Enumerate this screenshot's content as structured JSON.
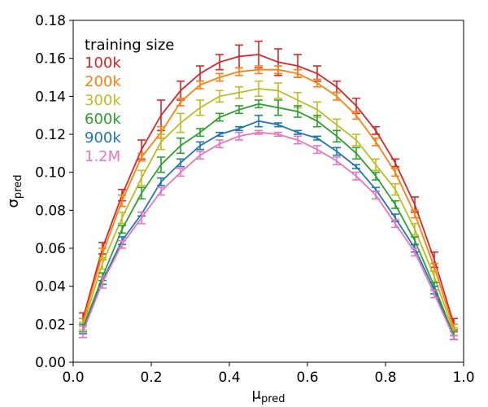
{
  "chart_data": {
    "type": "line",
    "title": "",
    "xlabel": "μ",
    "xlabel_sub": "pred",
    "ylabel": "σ",
    "ylabel_sub": "pred",
    "xlim": [
      0.0,
      1.0
    ],
    "ylim": [
      0.0,
      0.18
    ],
    "x_ticks": [
      "0.0",
      "0.2",
      "0.4",
      "0.6",
      "0.8",
      "1.0"
    ],
    "y_ticks": [
      "0.00",
      "0.02",
      "0.04",
      "0.06",
      "0.08",
      "0.10",
      "0.12",
      "0.14",
      "0.16",
      "0.18"
    ],
    "legend_title": "training size",
    "x": [
      0.025,
      0.075,
      0.125,
      0.175,
      0.225,
      0.275,
      0.325,
      0.375,
      0.425,
      0.475,
      0.525,
      0.575,
      0.625,
      0.675,
      0.725,
      0.775,
      0.825,
      0.875,
      0.925,
      0.975
    ],
    "series": [
      {
        "name": "100k",
        "color": "#d62728",
        "values": [
          0.023,
          0.06,
          0.088,
          0.112,
          0.13,
          0.143,
          0.152,
          0.158,
          0.161,
          0.162,
          0.158,
          0.156,
          0.152,
          0.145,
          0.135,
          0.122,
          0.105,
          0.083,
          0.054,
          0.02
        ],
        "errors": [
          0.003,
          0.003,
          0.003,
          0.005,
          0.008,
          0.005,
          0.004,
          0.004,
          0.006,
          0.007,
          0.007,
          0.006,
          0.004,
          0.003,
          0.004,
          0.002,
          0.002,
          0.004,
          0.004,
          0.003
        ]
      },
      {
        "name": "200k",
        "color": "#ff7f0e",
        "values": [
          0.021,
          0.057,
          0.085,
          0.108,
          0.121,
          0.137,
          0.146,
          0.15,
          0.153,
          0.154,
          0.154,
          0.152,
          0.147,
          0.14,
          0.13,
          0.116,
          0.1,
          0.078,
          0.05,
          0.018
        ],
        "errors": [
          0.002,
          0.003,
          0.003,
          0.002,
          0.003,
          0.002,
          0.002,
          0.002,
          0.002,
          0.002,
          0.002,
          0.002,
          0.002,
          0.002,
          0.002,
          0.002,
          0.002,
          0.002,
          0.002,
          0.002
        ]
      },
      {
        "name": "300k",
        "color": "#bcbd22",
        "values": [
          0.019,
          0.052,
          0.076,
          0.097,
          0.116,
          0.126,
          0.134,
          0.14,
          0.142,
          0.144,
          0.143,
          0.138,
          0.133,
          0.125,
          0.117,
          0.104,
          0.091,
          0.07,
          0.045,
          0.016
        ],
        "errors": [
          0.002,
          0.003,
          0.003,
          0.004,
          0.004,
          0.005,
          0.004,
          0.003,
          0.003,
          0.004,
          0.004,
          0.004,
          0.004,
          0.003,
          0.003,
          0.003,
          0.003,
          0.003,
          0.003,
          0.002
        ]
      },
      {
        "name": "600k",
        "color": "#2ca02c",
        "values": [
          0.018,
          0.045,
          0.07,
          0.089,
          0.104,
          0.114,
          0.121,
          0.129,
          0.133,
          0.136,
          0.134,
          0.132,
          0.127,
          0.119,
          0.11,
          0.098,
          0.083,
          0.064,
          0.04,
          0.014
        ],
        "errors": [
          0.002,
          0.002,
          0.002,
          0.003,
          0.004,
          0.004,
          0.002,
          0.002,
          0.002,
          0.002,
          0.004,
          0.003,
          0.003,
          0.003,
          0.003,
          0.002,
          0.002,
          0.002,
          0.002,
          0.002
        ]
      },
      {
        "name": "900k",
        "color": "#1f77b4",
        "values": [
          0.017,
          0.043,
          0.064,
          0.078,
          0.095,
          0.105,
          0.114,
          0.12,
          0.123,
          0.127,
          0.125,
          0.121,
          0.118,
          0.111,
          0.103,
          0.091,
          0.076,
          0.06,
          0.038,
          0.013
        ],
        "errors": [
          0.002,
          0.002,
          0.002,
          0.001,
          0.002,
          0.002,
          0.002,
          0.001,
          0.001,
          0.003,
          0.001,
          0.001,
          0.001,
          0.002,
          0.001,
          0.001,
          0.002,
          0.002,
          0.002,
          0.001
        ]
      },
      {
        "name": "1.2M",
        "color": "#e377c2",
        "values": [
          0.016,
          0.042,
          0.062,
          0.076,
          0.09,
          0.1,
          0.109,
          0.115,
          0.119,
          0.121,
          0.12,
          0.117,
          0.112,
          0.106,
          0.098,
          0.088,
          0.073,
          0.058,
          0.036,
          0.013
        ],
        "errors": [
          0.003,
          0.003,
          0.002,
          0.003,
          0.002,
          0.002,
          0.002,
          0.002,
          0.002,
          0.001,
          0.001,
          0.002,
          0.002,
          0.002,
          0.002,
          0.002,
          0.002,
          0.002,
          0.002,
          0.001
        ]
      }
    ]
  }
}
